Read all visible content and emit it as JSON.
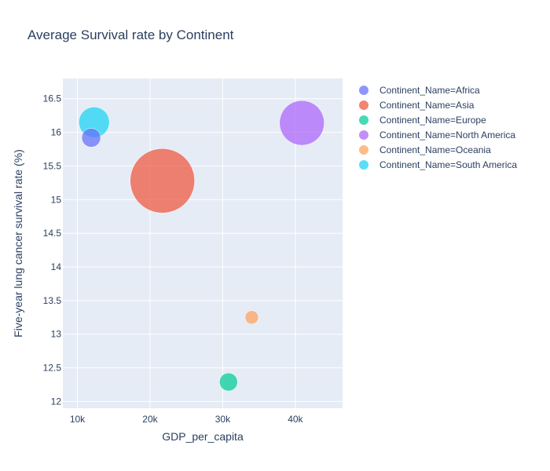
{
  "chart_data": {
    "type": "scatter",
    "title": "Average Survival rate by Continent",
    "xlabel": "GDP_per_capita",
    "ylabel": "Five-year lung cancer survival rate (%)",
    "xlim": [
      8000,
      46500
    ],
    "ylim": [
      11.9,
      16.8
    ],
    "x_ticks": [
      {
        "value": 10000,
        "label": "10k"
      },
      {
        "value": 20000,
        "label": "20k"
      },
      {
        "value": 30000,
        "label": "30k"
      },
      {
        "value": 40000,
        "label": "40k"
      }
    ],
    "y_ticks": [
      {
        "value": 12,
        "label": "12"
      },
      {
        "value": 12.5,
        "label": "12.5"
      },
      {
        "value": 13,
        "label": "13"
      },
      {
        "value": 13.5,
        "label": "13.5"
      },
      {
        "value": 14,
        "label": "14"
      },
      {
        "value": 14.5,
        "label": "14.5"
      },
      {
        "value": 15,
        "label": "15"
      },
      {
        "value": 15.5,
        "label": "15.5"
      },
      {
        "value": 16,
        "label": "16"
      },
      {
        "value": 16.5,
        "label": "16.5"
      }
    ],
    "grid": true,
    "legend_position": "right",
    "series": [
      {
        "name": "Continent_Name=Africa",
        "color": "#636efa",
        "x": 11900,
        "y": 15.92,
        "size": 12
      },
      {
        "name": "Continent_Name=Asia",
        "color": "#ef553b",
        "x": 21700,
        "y": 15.28,
        "size": 41
      },
      {
        "name": "Continent_Name=Europe",
        "color": "#00cc96",
        "x": 30800,
        "y": 12.29,
        "size": 11.5
      },
      {
        "name": "Continent_Name=North America",
        "color": "#ab63fa",
        "x": 40900,
        "y": 16.14,
        "size": 28.5
      },
      {
        "name": "Continent_Name=Oceania",
        "color": "#ffa15a",
        "x": 34000,
        "y": 13.25,
        "size": 8.5
      },
      {
        "name": "Continent_Name=South America",
        "color": "#19d3f3",
        "x": 12300,
        "y": 16.15,
        "size": 19.5
      }
    ]
  }
}
